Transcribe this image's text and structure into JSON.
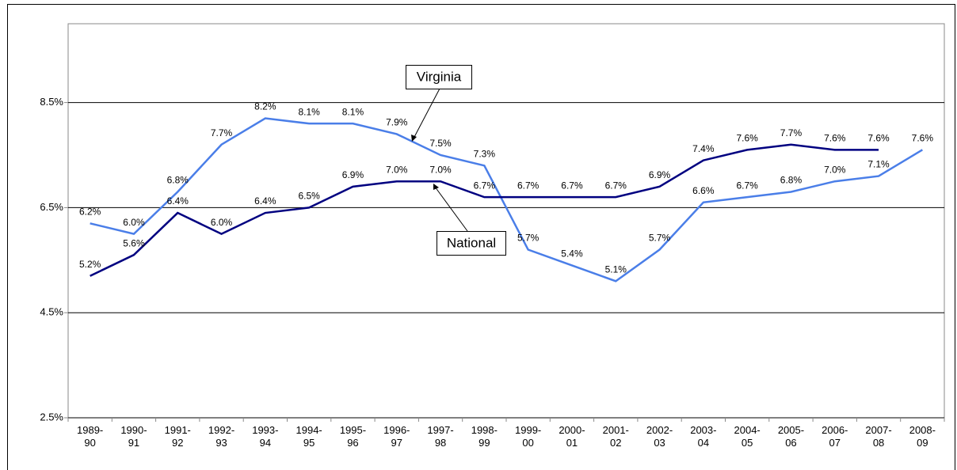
{
  "chart_data": {
    "type": "line",
    "categories": [
      "1989-90",
      "1990-91",
      "1991-92",
      "1992-93",
      "1993-94",
      "1994-95",
      "1995-96",
      "1996-97",
      "1997-98",
      "1998-99",
      "1999-00",
      "2000-01",
      "2001-02",
      "2002-03",
      "2003-04",
      "2004-05",
      "2005-06",
      "2006-07",
      "2007-08",
      "2008-09"
    ],
    "series": [
      {
        "name": "Virginia",
        "color": "#4a7ee8",
        "values": [
          6.2,
          6.0,
          6.8,
          7.7,
          8.2,
          8.1,
          8.1,
          7.9,
          7.5,
          7.3,
          5.7,
          5.4,
          5.1,
          5.7,
          6.6,
          6.7,
          6.8,
          7.0,
          7.1,
          7.6
        ],
        "value_labels": [
          "6.2%",
          "6.0%",
          "6.8%",
          "7.7%",
          "8.2%",
          "8.1%",
          "8.1%",
          "7.9%",
          "7.5%",
          "7.3%",
          "5.7%",
          "5.4%",
          "5.1%",
          "5.7%",
          "6.6%",
          "6.7%",
          "6.8%",
          "7.0%",
          "7.1%",
          "7.6%"
        ]
      },
      {
        "name": "National",
        "color": "#000080",
        "values": [
          5.2,
          5.6,
          6.4,
          6.0,
          6.4,
          6.5,
          6.9,
          7.0,
          7.0,
          6.7,
          6.7,
          6.7,
          6.7,
          6.9,
          7.4,
          7.6,
          7.7,
          7.6,
          7.6,
          null
        ],
        "value_labels": [
          "5.2%",
          "5.6%",
          "6.4%",
          "6.0%",
          "6.4%",
          "6.5%",
          "6.9%",
          "7.0%",
          "7.0%",
          "6.7%",
          "6.7%",
          "6.7%",
          "6.7%",
          "6.9%",
          "7.4%",
          "7.6%",
          "7.7%",
          "7.6%",
          "7.6%",
          null
        ]
      }
    ],
    "ylim": [
      2.5,
      10.0
    ],
    "yticks": [
      {
        "value": 2.5,
        "label": "2.5%"
      },
      {
        "value": 4.5,
        "label": "4.5%"
      },
      {
        "value": 6.5,
        "label": "6.5%"
      },
      {
        "value": 8.5,
        "label": "8.5%"
      }
    ],
    "grid": true
  }
}
